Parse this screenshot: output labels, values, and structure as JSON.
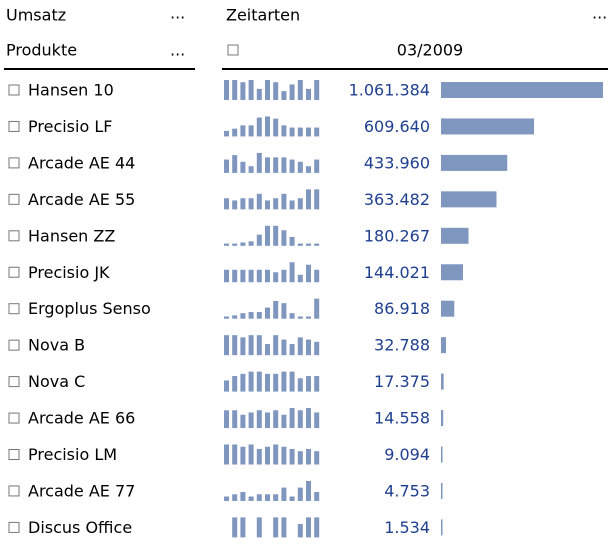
{
  "header": {
    "measure": "Umsatz",
    "dimension": "Zeitarten",
    "rows_label": "Produkte",
    "period": "03/2009",
    "more": "..."
  },
  "chart_data": {
    "type": "bar",
    "orientation": "horizontal",
    "color": "#7f96bf",
    "value_color": "#1f3f8f",
    "sparkline_color": "#7f96bf",
    "categories": [
      "Hansen 10",
      "Precisio LF",
      "Arcade AE 44",
      "Arcade AE 55",
      "Hansen ZZ",
      "Precisio JK",
      "Ergoplus Senso",
      "Nova B",
      "Nova C",
      "Arcade AE 66",
      "Precisio LM",
      "Arcade AE 77",
      "Discus Office"
    ],
    "values": [
      1061384,
      609640,
      433960,
      363482,
      180267,
      144021,
      86918,
      32788,
      17375,
      14558,
      9094,
      4753,
      1534
    ],
    "value_labels": [
      "1.061.384",
      "609.640",
      "433.960",
      "363.482",
      "180.267",
      "144.021",
      "86.918",
      "32.788",
      "17.375",
      "14.558",
      "9.094",
      "4.753",
      "1.534"
    ],
    "sparklines": [
      [
        18,
        18,
        16,
        18,
        10,
        18,
        16,
        8,
        14,
        18,
        10,
        18
      ],
      [
        5,
        7,
        10,
        10,
        17,
        18,
        16,
        10,
        8,
        8,
        8,
        8
      ],
      [
        12,
        16,
        10,
        6,
        18,
        14,
        14,
        14,
        12,
        10,
        6,
        12
      ],
      [
        10,
        8,
        10,
        10,
        14,
        8,
        10,
        14,
        8,
        10,
        18,
        18
      ],
      [
        2,
        2,
        3,
        4,
        10,
        18,
        18,
        14,
        8,
        2,
        2,
        2
      ],
      [
        10,
        10,
        10,
        10,
        10,
        10,
        8,
        10,
        16,
        6,
        14,
        10
      ],
      [
        2,
        3,
        5,
        6,
        6,
        10,
        16,
        14,
        5,
        2,
        2,
        18
      ],
      [
        18,
        18,
        16,
        18,
        18,
        10,
        18,
        14,
        10,
        16,
        14,
        12
      ],
      [
        10,
        14,
        16,
        18,
        18,
        16,
        16,
        18,
        18,
        12,
        14,
        14
      ],
      [
        16,
        16,
        12,
        14,
        16,
        14,
        16,
        12,
        18,
        16,
        18,
        14
      ],
      [
        18,
        18,
        16,
        18,
        14,
        16,
        18,
        16,
        14,
        12,
        14,
        12
      ],
      [
        4,
        6,
        8,
        4,
        6,
        6,
        6,
        12,
        4,
        12,
        18,
        8
      ],
      [
        0,
        18,
        18,
        0,
        18,
        0,
        18,
        18,
        0,
        12,
        18,
        18
      ]
    ]
  }
}
